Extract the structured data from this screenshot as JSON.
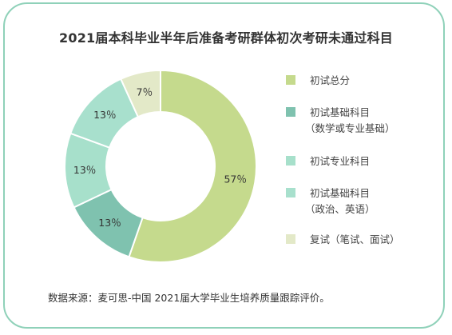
{
  "chart_data": {
    "type": "pie",
    "title": "2021届本科毕业半年后准备考研群体初次考研未通过科目",
    "unit": "%",
    "categories": [
      "初试总分",
      "初试基础科目（数学或专业基础）",
      "初试专业科目",
      "初试基础科目（政治、英语）",
      "复试（笔试、面试）"
    ],
    "values": [
      57,
      13,
      13,
      13,
      7
    ],
    "value_labels": [
      "57％",
      "13％",
      "13％",
      "13％",
      "7％"
    ],
    "colors": [
      "#c5da8d",
      "#7fc2af",
      "#a7e0cb",
      "#a8e0cd",
      "#e3e9c8"
    ],
    "legend_position": "right"
  },
  "legend": [
    {
      "line1": "初试总分",
      "line2": "",
      "color": "#c5da8d"
    },
    {
      "line1": "初试基础科目",
      "line2": "（数学或专业基础）",
      "color": "#7fc2af"
    },
    {
      "line1": "初试专业科目",
      "line2": "",
      "color": "#a7e0cb"
    },
    {
      "line1": "初试基础科目",
      "line2": "（政治、英语）",
      "color": "#a8e0cd"
    },
    {
      "line1": "复试（笔试、面试）",
      "line2": "",
      "color": "#e3e9c8"
    }
  ],
  "source": "数据来源：麦可思-中国 2021届大学毕业生培养质量跟踪评价。"
}
